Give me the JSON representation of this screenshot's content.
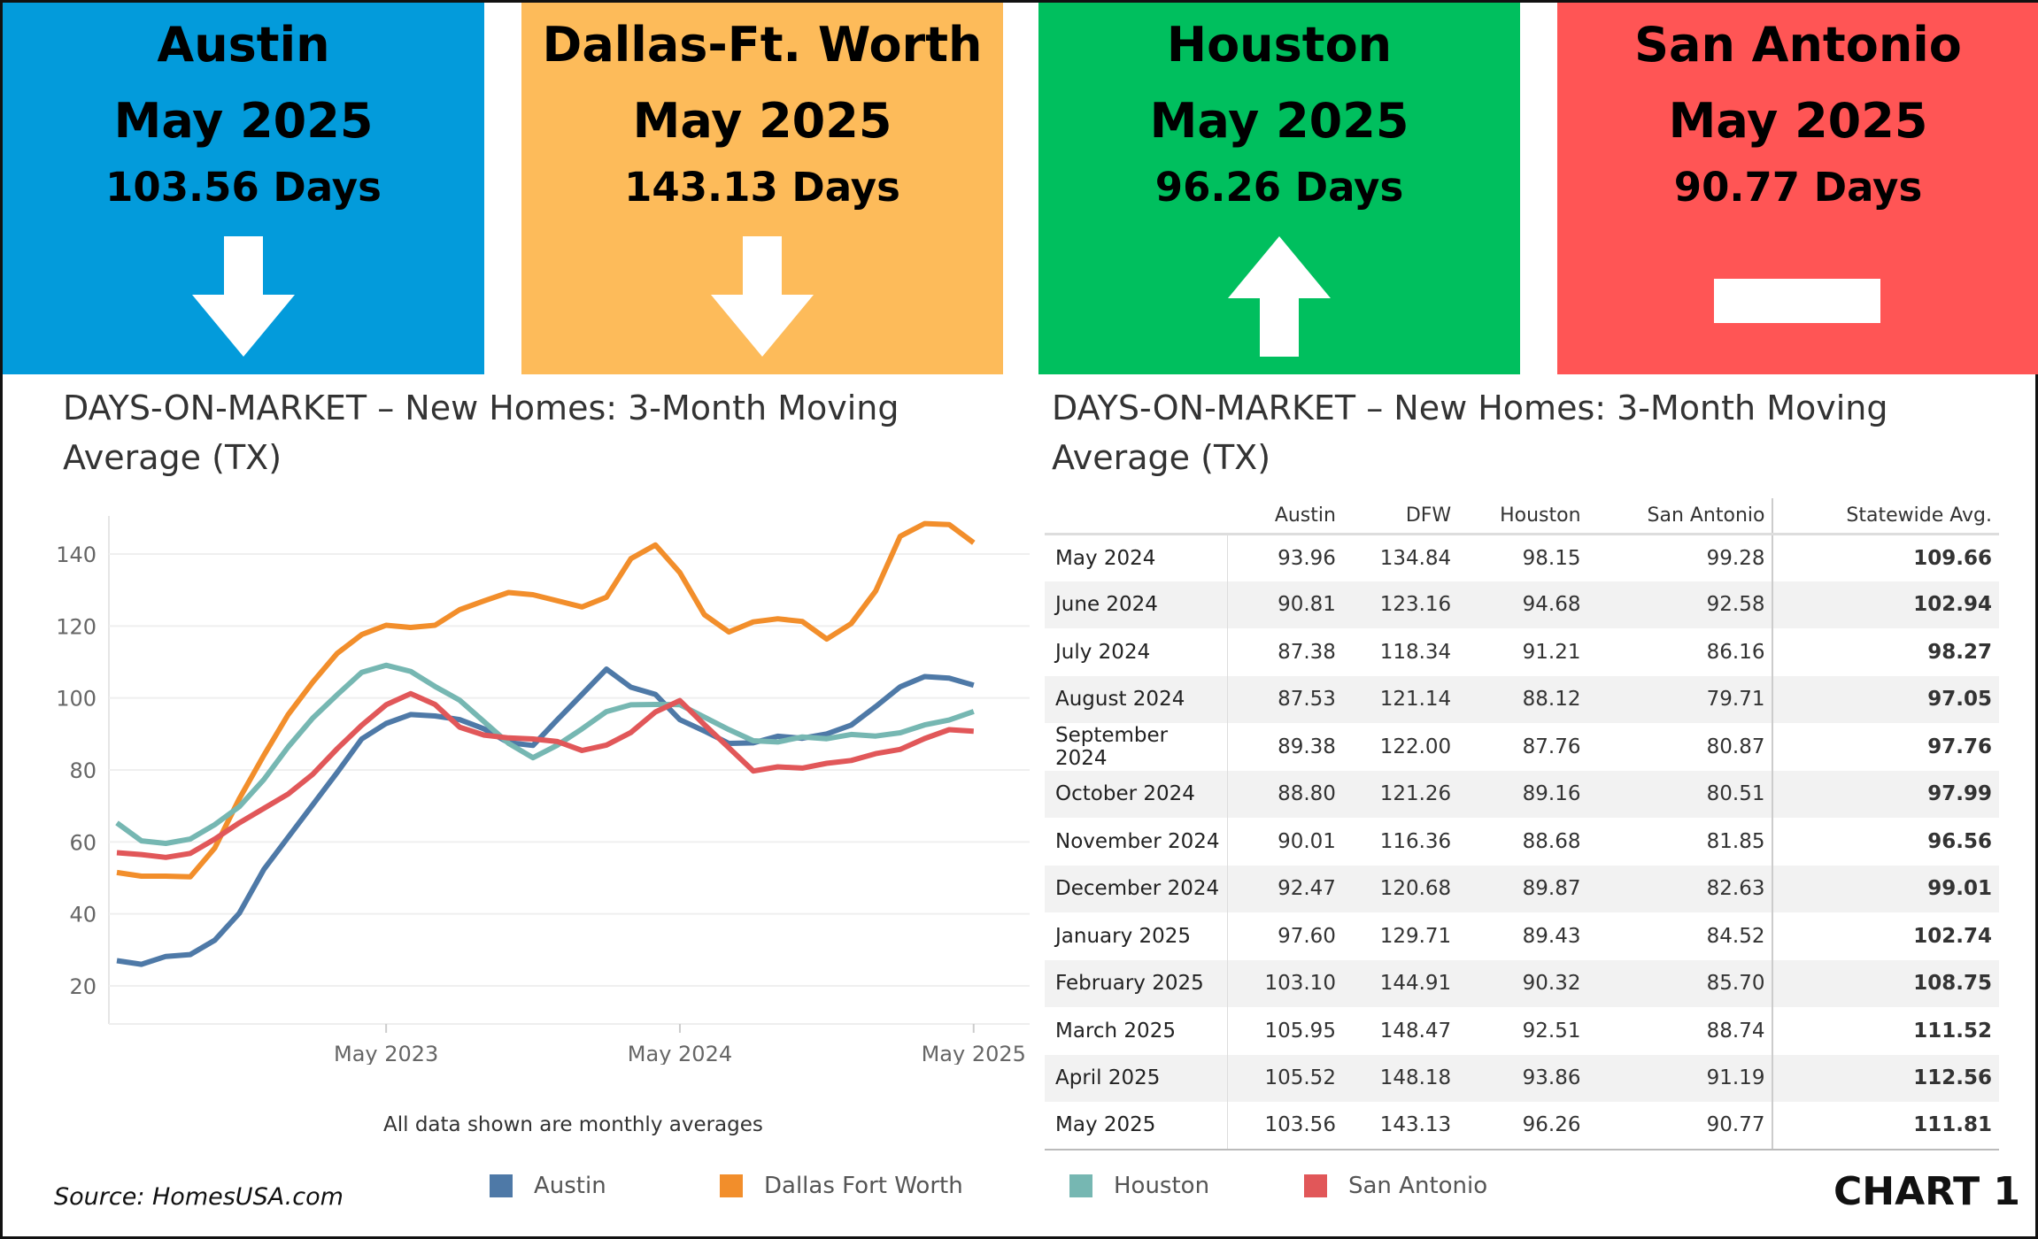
{
  "tiles": [
    {
      "city": "Austin",
      "month": "May 2025",
      "days": "103.56 Days",
      "direction": "down",
      "color": "#039BDB"
    },
    {
      "city": "Dallas-Ft. Worth",
      "month": "May 2025",
      "days": "143.13 Days",
      "direction": "down",
      "color": "#FDBB5A"
    },
    {
      "city": "Houston",
      "month": "May 2025",
      "days": "96.26 Days",
      "direction": "up",
      "color": "#00BF5E"
    },
    {
      "city": "San Antonio",
      "month": "May 2025",
      "days": "90.77 Days",
      "direction": "flat",
      "color": "#FF5555"
    }
  ],
  "left_title": "DAYS-ON-MARKET – New Homes: 3-Month Moving Average (TX)",
  "right_title": "DAYS-ON-MARKET – New Homes:  3-Month Moving Average (TX)",
  "note": "All data shown are monthly averages",
  "source": "Source: HomesUSA.com",
  "chart_label": "CHART 1",
  "chart_data": {
    "type": "line",
    "x_start": "June 2022",
    "x_end": "May 2025",
    "frequency": "monthly",
    "x_ticks": [
      "May 2023",
      "May 2024",
      "May 2025"
    ],
    "y_ticks": [
      20,
      40,
      60,
      80,
      100,
      120,
      140
    ],
    "ylim": [
      12,
      152
    ],
    "grid": true,
    "legend": "bottom",
    "series": [
      {
        "name": "Austin",
        "color": "#4E79A7",
        "values": [
          27,
          26,
          28.2,
          28.7,
          32.7,
          40.2,
          52.3,
          61.3,
          70.3,
          79.3,
          88.6,
          92.9,
          95.4,
          95,
          94,
          91.4,
          87.6,
          86.8,
          94,
          101,
          108,
          103,
          101,
          93.96,
          90.81,
          87.38,
          87.53,
          89.38,
          88.8,
          90.01,
          92.47,
          97.6,
          103.1,
          105.95,
          105.52,
          103.56
        ]
      },
      {
        "name": "Dallas Fort Worth",
        "color": "#F28E2B",
        "values": [
          51.5,
          50.5,
          50.5,
          50.3,
          58.3,
          72,
          84,
          95.4,
          104.4,
          112.4,
          117.6,
          120.2,
          119.6,
          120.2,
          124.5,
          127,
          129.3,
          128.7,
          127,
          125.3,
          128,
          138.7,
          142.5,
          134.84,
          123.16,
          118.34,
          121.14,
          122.0,
          121.26,
          116.36,
          120.68,
          129.71,
          144.91,
          148.47,
          148.18,
          143.13
        ]
      },
      {
        "name": "Houston",
        "color": "#76B7B2",
        "values": [
          65.3,
          60.3,
          59.6,
          60.8,
          64.8,
          69.8,
          77.3,
          86.4,
          94.4,
          100.9,
          107.1,
          109.1,
          107.4,
          103.2,
          99.4,
          93.4,
          87.4,
          83.4,
          86.9,
          91.4,
          96.2,
          98.1,
          98.2,
          98.15,
          94.68,
          91.21,
          88.12,
          87.76,
          89.16,
          88.68,
          89.87,
          89.43,
          90.32,
          92.51,
          93.86,
          96.26
        ]
      },
      {
        "name": "San Antonio",
        "color": "#E15759",
        "values": [
          57,
          56.5,
          55.7,
          56.8,
          60.8,
          65.3,
          69.3,
          73.3,
          78.8,
          85.9,
          92.4,
          98.1,
          101.2,
          98.2,
          91.9,
          89.7,
          88.9,
          88.6,
          87.9,
          85.4,
          86.9,
          90.4,
          96.1,
          99.28,
          92.58,
          86.16,
          79.71,
          80.87,
          80.51,
          81.85,
          82.63,
          84.52,
          85.7,
          88.74,
          91.19,
          90.77
        ]
      }
    ]
  },
  "table": {
    "headers": [
      "",
      "Austin",
      "DFW",
      "Houston",
      "San Antonio",
      "Statewide Avg."
    ],
    "rows": [
      [
        "May 2024",
        "93.96",
        "134.84",
        "98.15",
        "99.28",
        "109.66"
      ],
      [
        "June 2024",
        "90.81",
        "123.16",
        "94.68",
        "92.58",
        "102.94"
      ],
      [
        "July 2024",
        "87.38",
        "118.34",
        "91.21",
        "86.16",
        "98.27"
      ],
      [
        "August 2024",
        "87.53",
        "121.14",
        "88.12",
        "79.71",
        "97.05"
      ],
      [
        "September 2024",
        "89.38",
        "122.00",
        "87.76",
        "80.87",
        "97.76"
      ],
      [
        "October 2024",
        "88.80",
        "121.26",
        "89.16",
        "80.51",
        "97.99"
      ],
      [
        "November 2024",
        "90.01",
        "116.36",
        "88.68",
        "81.85",
        "96.56"
      ],
      [
        "December 2024",
        "92.47",
        "120.68",
        "89.87",
        "82.63",
        "99.01"
      ],
      [
        "January 2025",
        "97.60",
        "129.71",
        "89.43",
        "84.52",
        "102.74"
      ],
      [
        "February 2025",
        "103.10",
        "144.91",
        "90.32",
        "85.70",
        "108.75"
      ],
      [
        "March 2025",
        "105.95",
        "148.47",
        "92.51",
        "88.74",
        "111.52"
      ],
      [
        "April 2025",
        "105.52",
        "148.18",
        "93.86",
        "91.19",
        "112.56"
      ],
      [
        "May 2025",
        "103.56",
        "143.13",
        "96.26",
        "90.77",
        "111.81"
      ]
    ]
  }
}
